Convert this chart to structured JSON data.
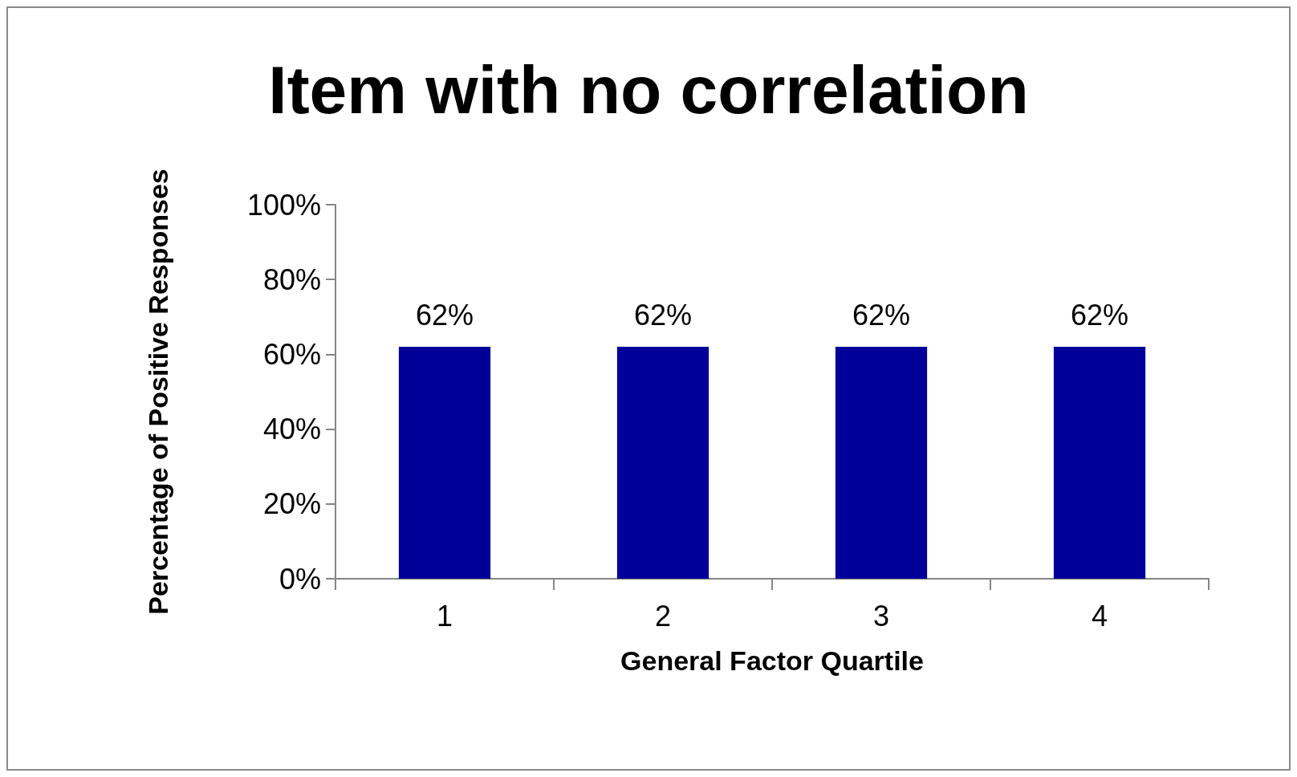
{
  "chart_data": {
    "type": "bar",
    "title": "Item with no correlation",
    "xlabel": "General Factor Quartile",
    "ylabel": "Percentage of Positive Responses",
    "categories": [
      "1",
      "2",
      "3",
      "4"
    ],
    "values": [
      62,
      62,
      62,
      62
    ],
    "value_labels": [
      "62%",
      "62%",
      "62%",
      "62%"
    ],
    "color": "#000099",
    "ylim": [
      0,
      100
    ],
    "yticks": [
      {
        "value": 0,
        "label": "0%"
      },
      {
        "value": 20,
        "label": "20%"
      },
      {
        "value": 40,
        "label": "40%"
      },
      {
        "value": 60,
        "label": "60%"
      },
      {
        "value": 80,
        "label": "80%"
      },
      {
        "value": 100,
        "label": "100%"
      }
    ],
    "grid": false
  }
}
